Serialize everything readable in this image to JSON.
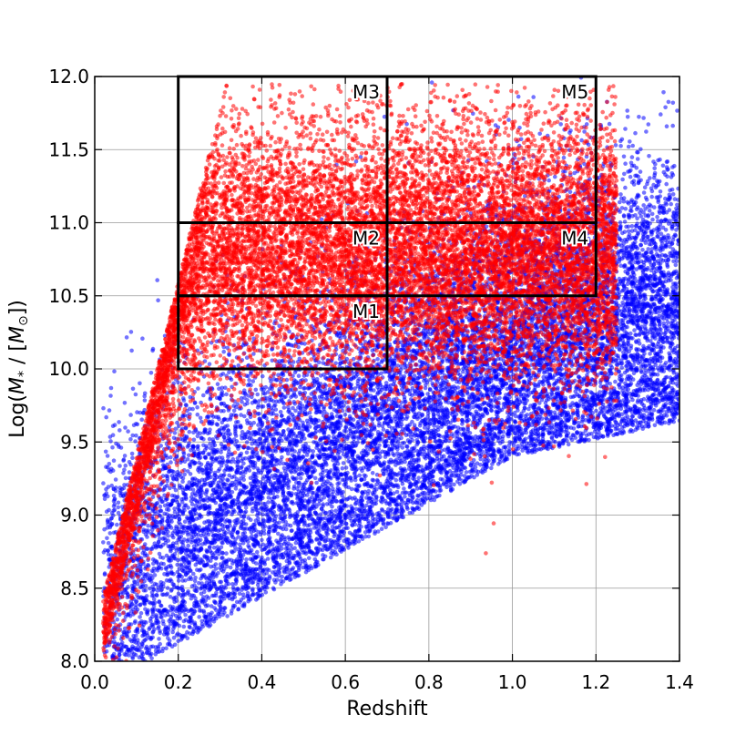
{
  "chart_data": {
    "type": "scatter",
    "xlabel": "Redshift",
    "ylabel_prefix": "Log(",
    "ylabel_math": "M",
    "ylabel_sub": "*",
    "ylabel_mid": " / [",
    "ylabel_sun": "M",
    "ylabel_sun_sub": "⊙",
    "ylabel_suffix": "])",
    "xlim": [
      0.0,
      1.4
    ],
    "ylim": [
      8.0,
      12.0
    ],
    "xticks": [
      "0.0",
      "0.2",
      "0.4",
      "0.6",
      "0.8",
      "1.0",
      "1.2",
      "1.4"
    ],
    "yticks": [
      "8.0",
      "8.5",
      "9.0",
      "9.5",
      "10.0",
      "10.5",
      "11.0",
      "11.5",
      "12.0"
    ],
    "grid": true,
    "series": [
      {
        "color": "#0000ff",
        "opacity": 0.55,
        "n_points": 14000,
        "density_model": {
          "mass_floor_at_z0": 8.0,
          "mass_floor_slope": 1.6,
          "peak_mass_offset": 0.55,
          "spread": 0.55,
          "z_range": [
            0.02,
            1.4
          ]
        }
      },
      {
        "color": "#ff0000",
        "opacity": 0.55,
        "n_points": 14000,
        "density_model": {
          "peak_mass": 10.8,
          "spread": 0.45,
          "z_range": [
            0.02,
            1.25
          ]
        }
      }
    ],
    "boxes": [
      {
        "label": "M1",
        "x": [
          0.2,
          0.7
        ],
        "y": [
          10.0,
          10.5
        ]
      },
      {
        "label": "M2",
        "x": [
          0.2,
          0.7
        ],
        "y": [
          10.5,
          11.0
        ]
      },
      {
        "label": "M3",
        "x": [
          0.2,
          0.7
        ],
        "y": [
          11.0,
          12.0
        ]
      },
      {
        "label": "M4",
        "x": [
          0.7,
          1.2
        ],
        "y": [
          10.5,
          11.0
        ]
      },
      {
        "label": "M5",
        "x": [
          0.7,
          1.2
        ],
        "y": [
          11.0,
          12.0
        ]
      }
    ]
  }
}
